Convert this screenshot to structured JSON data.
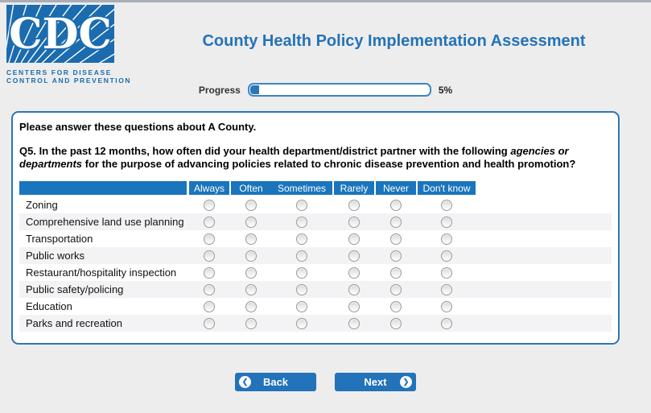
{
  "header": {
    "logo": {
      "acronym": "CDC",
      "caption_line1": "CENTERS FOR DISEASE",
      "caption_line2": "CONTROL AND PREVENTION"
    },
    "title": "County Health Policy Implementation Assessment"
  },
  "progress": {
    "label": "Progress",
    "percent": 5,
    "percent_text": "5%"
  },
  "survey": {
    "intro": "Please answer these questions about A County.",
    "question_number": "Q5.",
    "question_before_italic": " In the past 12 months, how often did your health department/district partner with the following ",
    "question_italic": "agencies or departments",
    "question_after_italic": " for the purpose of advancing policies related to chronic disease prevention and health promotion?",
    "columns": [
      "Always",
      "Often",
      "Sometimes",
      "Rarely",
      "Never",
      "Don't know"
    ],
    "rows": [
      "Zoning",
      "Comprehensive land use planning",
      "Transportation",
      "Public works",
      "Restaurant/hospitality inspection",
      "Public safety/policing",
      "Education",
      "Parks and recreation"
    ]
  },
  "nav": {
    "back_label": "Back",
    "next_label": "Next",
    "back_icon": "❮",
    "next_icon": "❯"
  },
  "colors": {
    "brand_blue": "#1b6cae",
    "title_blue": "#2473b8",
    "header_bar_blue": "#1a75bc",
    "button_blue": "#2273b9",
    "panel_border_blue": "#2e75b6",
    "alt_row": "#f3f3f6",
    "page_bg": "#ededed"
  }
}
